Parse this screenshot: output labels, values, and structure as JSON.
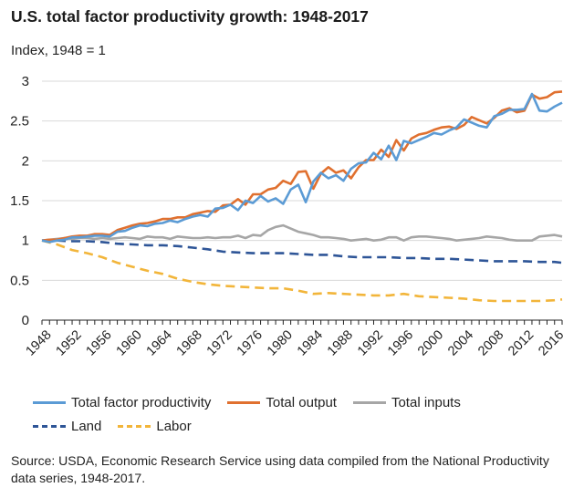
{
  "chart_data": {
    "type": "line",
    "title": "U.S. total factor productivity growth: 1948-2017",
    "subtitle": "Index, 1948 = 1",
    "xlim": [
      1948,
      2017
    ],
    "ylim": [
      0,
      3
    ],
    "yticks": [
      0,
      0.5,
      1,
      1.5,
      2,
      2.5,
      3
    ],
    "ytick_labels": [
      "0",
      "0.5",
      "1",
      "1.5",
      "2",
      "2.5",
      "3"
    ],
    "xticks": [
      1948,
      1952,
      1956,
      1960,
      1964,
      1968,
      1972,
      1976,
      1980,
      1984,
      1988,
      1992,
      1996,
      2000,
      2004,
      2008,
      2012,
      2016
    ],
    "xtick_labels": [
      "1948",
      "1952",
      "1956",
      "1960",
      "1964",
      "1968",
      "1972",
      "1976",
      "1980",
      "1984",
      "1988",
      "1992",
      "1996",
      "2000",
      "2004",
      "2008",
      "2012",
      "2016"
    ],
    "grid": "horizontal",
    "legend_position": "bottom",
    "series": [
      {
        "name": "Total factor productivity",
        "color": "#5b9bd5",
        "dash": "solid",
        "x": [
          1948,
          1949,
          1950,
          1951,
          1952,
          1953,
          1954,
          1955,
          1956,
          1957,
          1958,
          1959,
          1960,
          1961,
          1962,
          1963,
          1964,
          1965,
          1966,
          1967,
          1968,
          1969,
          1970,
          1971,
          1972,
          1973,
          1974,
          1975,
          1976,
          1977,
          1978,
          1979,
          1980,
          1981,
          1982,
          1983,
          1984,
          1985,
          1986,
          1987,
          1988,
          1989,
          1990,
          1991,
          1992,
          1993,
          1994,
          1995,
          1996,
          1997,
          1998,
          1999,
          2000,
          2001,
          2002,
          2003,
          2004,
          2005,
          2006,
          2007,
          2008,
          2009,
          2010,
          2011,
          2012,
          2013,
          2014,
          2015,
          2016,
          2017
        ],
        "y": [
          1.0,
          0.98,
          1.0,
          1.01,
          1.04,
          1.04,
          1.05,
          1.06,
          1.06,
          1.05,
          1.11,
          1.12,
          1.16,
          1.19,
          1.18,
          1.21,
          1.22,
          1.25,
          1.23,
          1.27,
          1.3,
          1.32,
          1.3,
          1.4,
          1.41,
          1.45,
          1.38,
          1.5,
          1.47,
          1.56,
          1.49,
          1.53,
          1.46,
          1.64,
          1.7,
          1.48,
          1.74,
          1.85,
          1.78,
          1.82,
          1.75,
          1.9,
          1.97,
          1.98,
          2.1,
          2.02,
          2.19,
          2.01,
          2.25,
          2.22,
          2.26,
          2.3,
          2.35,
          2.33,
          2.38,
          2.42,
          2.52,
          2.48,
          2.44,
          2.42,
          2.56,
          2.59,
          2.64,
          2.64,
          2.65,
          2.84,
          2.63,
          2.62,
          2.68,
          2.73
        ]
      },
      {
        "name": "Total output",
        "color": "#e0702f",
        "dash": "solid",
        "x": [
          1948,
          1949,
          1950,
          1951,
          1952,
          1953,
          1954,
          1955,
          1956,
          1957,
          1958,
          1959,
          1960,
          1961,
          1962,
          1963,
          1964,
          1965,
          1966,
          1967,
          1968,
          1969,
          1970,
          1971,
          1972,
          1973,
          1974,
          1975,
          1976,
          1977,
          1978,
          1979,
          1980,
          1981,
          1982,
          1983,
          1984,
          1985,
          1986,
          1987,
          1988,
          1989,
          1990,
          1991,
          1992,
          1993,
          1994,
          1995,
          1996,
          1997,
          1998,
          1999,
          2000,
          2001,
          2002,
          2003,
          2004,
          2005,
          2006,
          2007,
          2008,
          2009,
          2010,
          2011,
          2012,
          2013,
          2014,
          2015,
          2016,
          2017
        ],
        "y": [
          1.0,
          1.01,
          1.01,
          1.03,
          1.05,
          1.06,
          1.06,
          1.08,
          1.08,
          1.07,
          1.13,
          1.16,
          1.19,
          1.21,
          1.22,
          1.24,
          1.27,
          1.27,
          1.29,
          1.29,
          1.33,
          1.35,
          1.37,
          1.36,
          1.44,
          1.45,
          1.52,
          1.45,
          1.58,
          1.58,
          1.64,
          1.66,
          1.75,
          1.71,
          1.86,
          1.87,
          1.65,
          1.84,
          1.92,
          1.85,
          1.88,
          1.78,
          1.92,
          2.01,
          2.01,
          2.14,
          2.05,
          2.26,
          2.13,
          2.28,
          2.33,
          2.35,
          2.39,
          2.42,
          2.43,
          2.4,
          2.45,
          2.55,
          2.51,
          2.47,
          2.54,
          2.63,
          2.66,
          2.61,
          2.63,
          2.83,
          2.78,
          2.8,
          2.86,
          2.87
        ]
      },
      {
        "name": "Total inputs",
        "color": "#a6a6a6",
        "dash": "solid",
        "x": [
          1948,
          1949,
          1950,
          1951,
          1952,
          1953,
          1954,
          1955,
          1956,
          1957,
          1958,
          1959,
          1960,
          1961,
          1962,
          1963,
          1964,
          1965,
          1966,
          1967,
          1968,
          1969,
          1970,
          1971,
          1972,
          1973,
          1974,
          1975,
          1976,
          1977,
          1978,
          1979,
          1980,
          1981,
          1982,
          1983,
          1984,
          1985,
          1986,
          1987,
          1988,
          1989,
          1990,
          1991,
          1992,
          1993,
          1994,
          1995,
          1996,
          1997,
          1998,
          1999,
          2000,
          2001,
          2002,
          2003,
          2004,
          2005,
          2006,
          2007,
          2008,
          2009,
          2010,
          2011,
          2012,
          2013,
          2014,
          2015,
          2016,
          2017
        ],
        "y": [
          1.0,
          1.01,
          1.02,
          1.03,
          1.02,
          1.03,
          1.03,
          1.02,
          1.03,
          1.02,
          1.03,
          1.04,
          1.03,
          1.02,
          1.05,
          1.04,
          1.04,
          1.02,
          1.05,
          1.04,
          1.03,
          1.03,
          1.04,
          1.03,
          1.04,
          1.04,
          1.06,
          1.03,
          1.07,
          1.06,
          1.13,
          1.17,
          1.19,
          1.15,
          1.11,
          1.09,
          1.07,
          1.04,
          1.04,
          1.03,
          1.02,
          1.0,
          1.01,
          1.02,
          1.0,
          1.01,
          1.04,
          1.04,
          1.0,
          1.04,
          1.05,
          1.05,
          1.04,
          1.03,
          1.02,
          1.0,
          1.01,
          1.02,
          1.03,
          1.05,
          1.04,
          1.03,
          1.01,
          1.0,
          1.0,
          1.0,
          1.05,
          1.06,
          1.07,
          1.05
        ]
      },
      {
        "name": "Land",
        "color": "#2e5597",
        "dash": "dashed",
        "x": [
          1948,
          1950,
          1952,
          1954,
          1956,
          1958,
          1960,
          1962,
          1964,
          1966,
          1968,
          1970,
          1972,
          1974,
          1976,
          1978,
          1980,
          1982,
          1984,
          1986,
          1988,
          1990,
          1992,
          1994,
          1996,
          1998,
          2000,
          2002,
          2004,
          2006,
          2008,
          2010,
          2012,
          2014,
          2016,
          2017
        ],
        "y": [
          1.0,
          1.0,
          0.99,
          0.99,
          0.98,
          0.96,
          0.95,
          0.94,
          0.94,
          0.93,
          0.91,
          0.89,
          0.86,
          0.85,
          0.84,
          0.84,
          0.84,
          0.83,
          0.82,
          0.82,
          0.8,
          0.79,
          0.79,
          0.79,
          0.78,
          0.78,
          0.77,
          0.77,
          0.76,
          0.75,
          0.74,
          0.74,
          0.74,
          0.73,
          0.73,
          0.72
        ]
      },
      {
        "name": "Labor",
        "color": "#f2b53a",
        "dash": "dashed",
        "x": [
          1948,
          1950,
          1952,
          1954,
          1956,
          1958,
          1960,
          1962,
          1964,
          1966,
          1968,
          1970,
          1972,
          1974,
          1976,
          1978,
          1980,
          1982,
          1984,
          1986,
          1988,
          1990,
          1992,
          1994,
          1996,
          1998,
          2000,
          2002,
          2004,
          2006,
          2008,
          2010,
          2012,
          2014,
          2016,
          2017
        ],
        "y": [
          1.0,
          0.95,
          0.88,
          0.84,
          0.79,
          0.72,
          0.67,
          0.62,
          0.58,
          0.52,
          0.48,
          0.45,
          0.43,
          0.42,
          0.41,
          0.4,
          0.4,
          0.37,
          0.33,
          0.34,
          0.33,
          0.32,
          0.31,
          0.31,
          0.33,
          0.3,
          0.29,
          0.28,
          0.27,
          0.25,
          0.24,
          0.24,
          0.24,
          0.24,
          0.25,
          0.26
        ]
      }
    ],
    "source": "Source: USDA, Economic Research Service using data compiled from the National Productivity data series, 1948-2017."
  }
}
